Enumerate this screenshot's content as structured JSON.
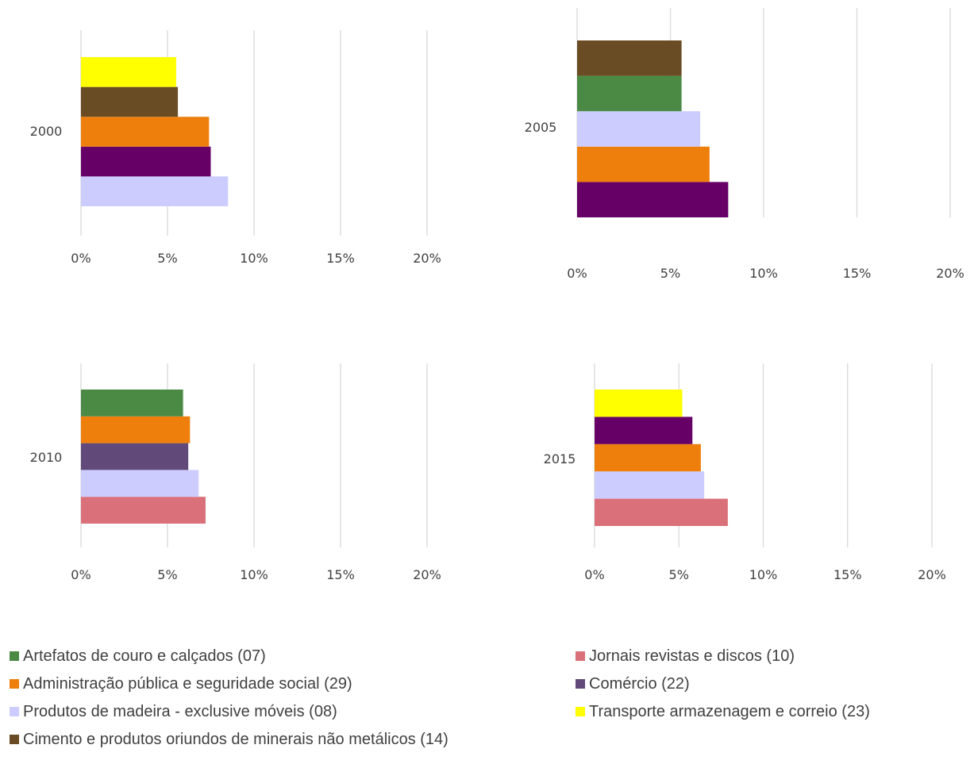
{
  "chart_data": [
    {
      "type": "bar",
      "orientation": "horizontal",
      "category": "2000",
      "xlim": [
        0,
        20
      ],
      "x_ticks": [
        "0%",
        "5%",
        "10%",
        "15%",
        "20%"
      ],
      "grid": true,
      "series": [
        {
          "key": "produtos_madeira",
          "value": 8.5
        },
        {
          "key": "comercio_dark",
          "value": 7.5
        },
        {
          "key": "administracao",
          "value": 7.4
        },
        {
          "key": "cimento",
          "value": 5.6
        },
        {
          "key": "transporte",
          "value": 5.5
        }
      ]
    },
    {
      "type": "bar",
      "orientation": "horizontal",
      "category": "2005",
      "xlim": [
        0,
        20
      ],
      "x_ticks": [
        "0%",
        "5%",
        "10%",
        "15%",
        "20%"
      ],
      "grid": true,
      "series": [
        {
          "key": "comercio_dark",
          "value": 8.1
        },
        {
          "key": "administracao",
          "value": 7.1
        },
        {
          "key": "produtos_madeira",
          "value": 6.6
        },
        {
          "key": "artefatos",
          "value": 5.6
        },
        {
          "key": "cimento",
          "value": 5.6
        }
      ]
    },
    {
      "type": "bar",
      "orientation": "horizontal",
      "category": "2010",
      "xlim": [
        0,
        20
      ],
      "x_ticks": [
        "0%",
        "5%",
        "10%",
        "15%",
        "20%"
      ],
      "grid": true,
      "series": [
        {
          "key": "jornais",
          "value": 7.2
        },
        {
          "key": "produtos_madeira",
          "value": 6.8
        },
        {
          "key": "comercio",
          "value": 6.2
        },
        {
          "key": "administracao",
          "value": 6.3
        },
        {
          "key": "artefatos",
          "value": 5.9
        }
      ]
    },
    {
      "type": "bar",
      "orientation": "horizontal",
      "category": "2015",
      "xlim": [
        0,
        20
      ],
      "x_ticks": [
        "0%",
        "5%",
        "10%",
        "15%",
        "20%"
      ],
      "grid": true,
      "series": [
        {
          "key": "jornais",
          "value": 7.9
        },
        {
          "key": "produtos_madeira",
          "value": 6.5
        },
        {
          "key": "administracao",
          "value": 6.3
        },
        {
          "key": "comercio_dark",
          "value": 5.8
        },
        {
          "key": "transporte",
          "value": 5.2
        }
      ]
    }
  ],
  "colors": {
    "artefatos": "#4a8a45",
    "jornais": "#d9707a",
    "administracao": "#ee7f0c",
    "comercio": "#614a7a",
    "comercio_dark": "#660066",
    "produtos_madeira": "#ccccff",
    "transporte": "#ffff00",
    "cimento": "#6a4c24",
    "grid": "#d9d9d9"
  },
  "legend": {
    "placement": "bottom",
    "items": [
      {
        "key": "artefatos",
        "label": "Artefatos de couro e calçados (07)"
      },
      {
        "key": "jornais",
        "label": "Jornais revistas e discos (10)"
      },
      {
        "key": "administracao",
        "label": "Administração pública e seguridade social (29)"
      },
      {
        "key": "comercio",
        "label": "Comércio (22)"
      },
      {
        "key": "produtos_madeira",
        "label": "Produtos de madeira - exclusive móveis (08)"
      },
      {
        "key": "transporte",
        "label": "Transporte armazenagem e correio (23)"
      },
      {
        "key": "cimento",
        "label": "Cimento e produtos oriundos de minerais não metálicos (14)"
      }
    ]
  }
}
